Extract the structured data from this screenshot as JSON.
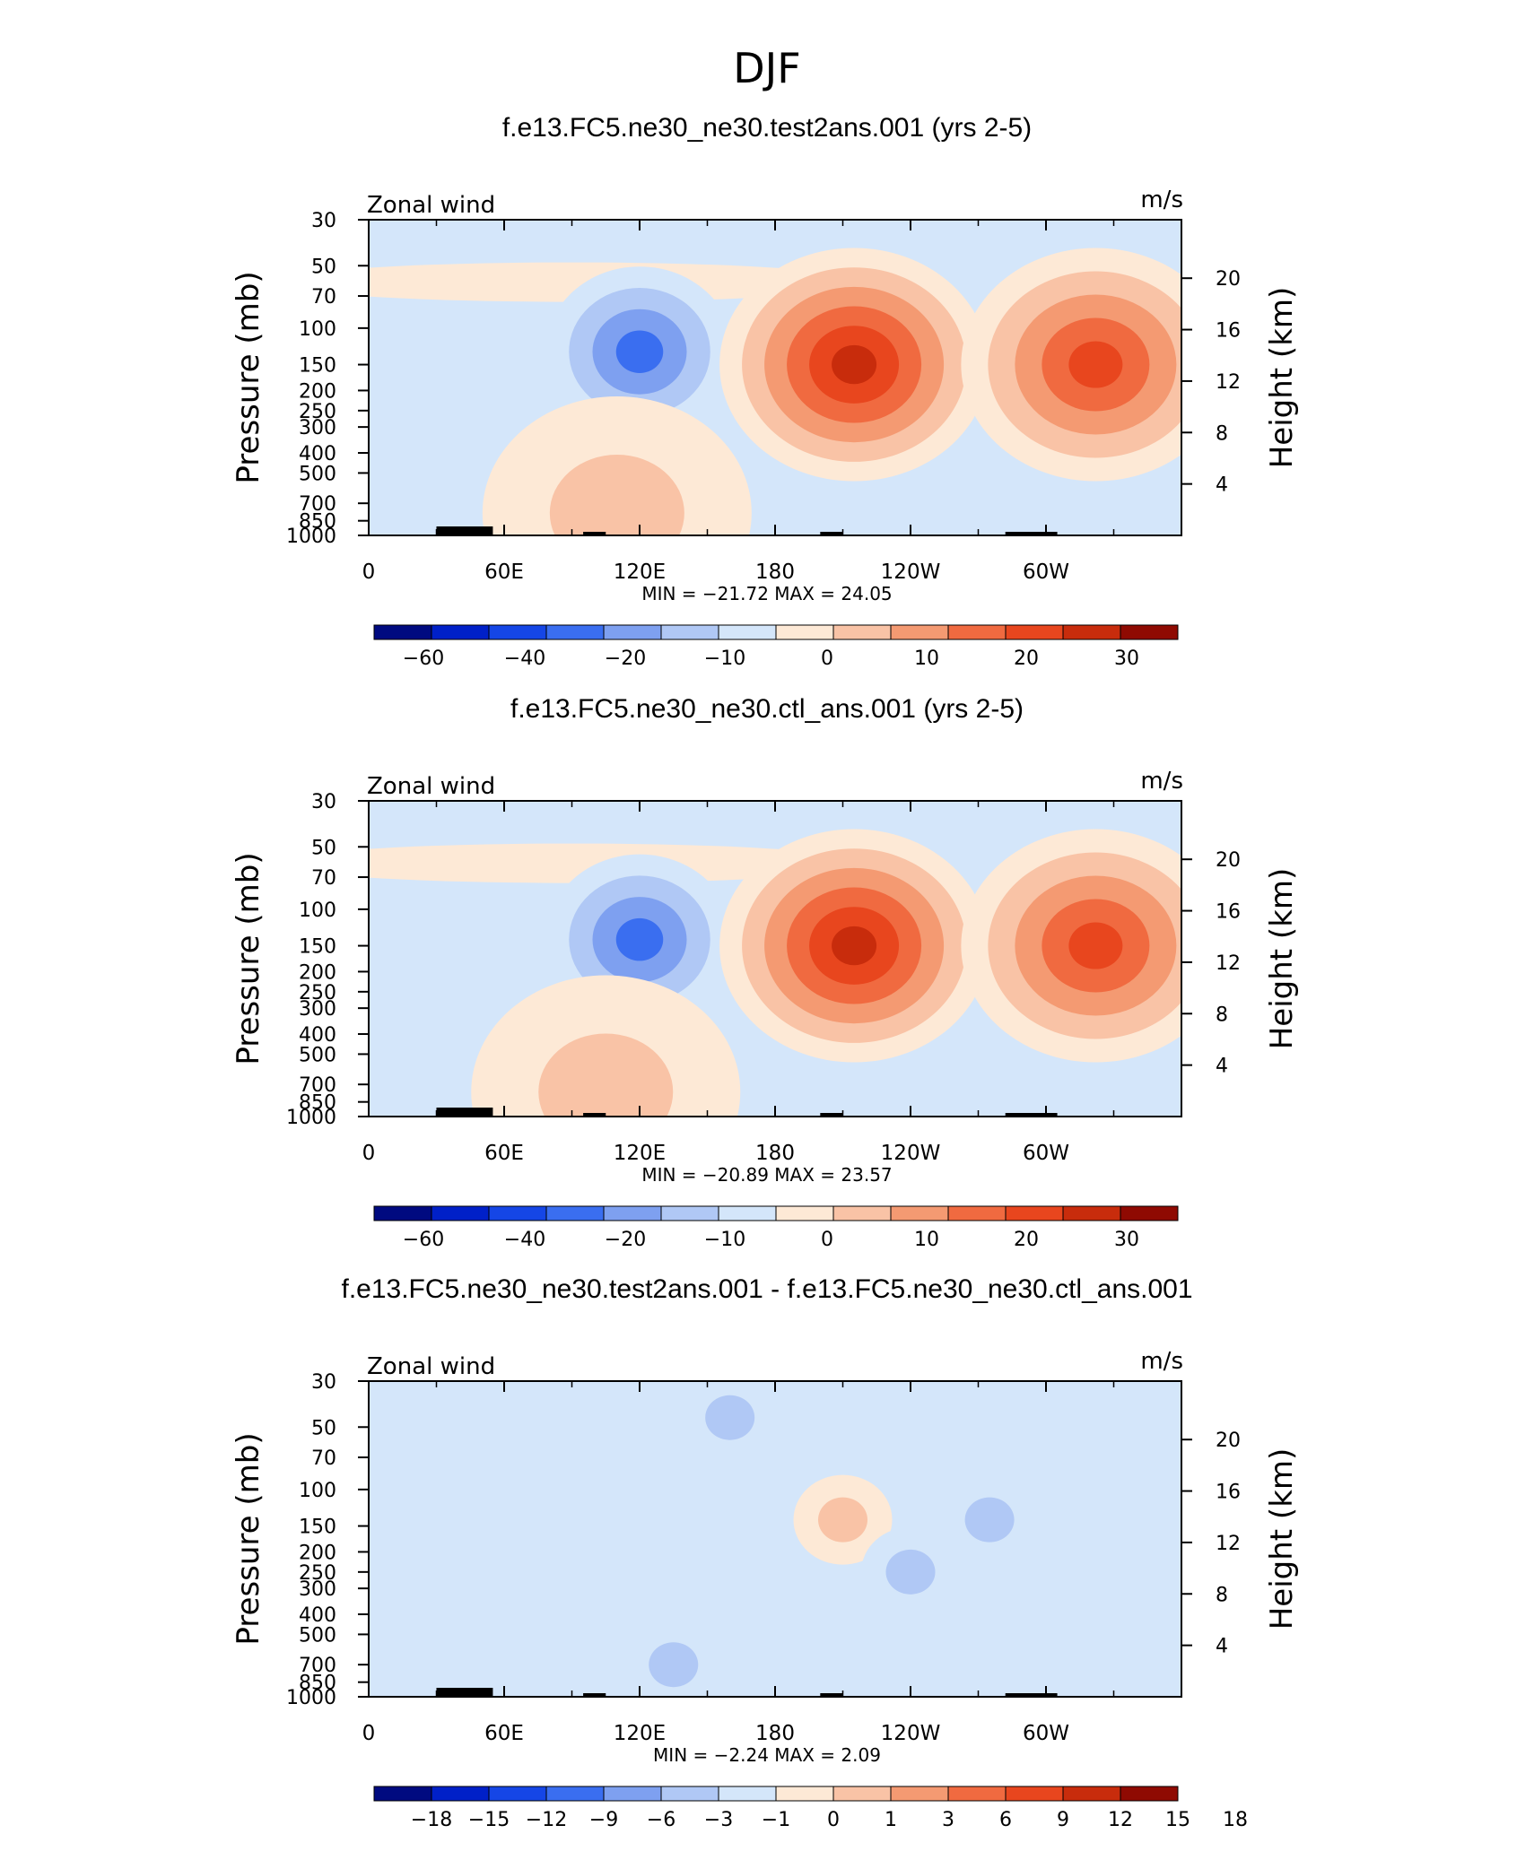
{
  "figure_title": "DJF",
  "chart_data": [
    {
      "type": "heatmap",
      "title": "f.e13.FC5.ne30_ne30.test2ans.001 (yrs 2-5)",
      "left_label": "Zonal wind",
      "right_label": "m/s",
      "ylabel": "Pressure (mb)",
      "ylabel_right": "Height (km)",
      "x_ticks": [
        "0",
        "60E",
        "120E",
        "180",
        "120W",
        "60W"
      ],
      "y_ticks": [
        "30",
        "50",
        "70",
        "100",
        "150",
        "200",
        "250",
        "300",
        "400",
        "500",
        "700",
        "850",
        "1000"
      ],
      "y_ticks_right": [
        "20",
        "16",
        "12",
        "8",
        "4"
      ],
      "stats_text": "MIN = −21.72   MAX =   24.05",
      "min": -21.72,
      "max": 24.05,
      "colorbar_labels": [
        "−60",
        "−40",
        "−20",
        "−10",
        "0",
        "10",
        "20",
        "30"
      ],
      "features": [
        {
          "lon": 120,
          "plev": 130,
          "value": -18
        },
        {
          "lon": 215,
          "plev": 150,
          "value": 24
        },
        {
          "lon": 322,
          "plev": 150,
          "value": 22
        },
        {
          "lon": 110,
          "plev": 780,
          "value": 8
        }
      ]
    },
    {
      "type": "heatmap",
      "title": "f.e13.FC5.ne30_ne30.ctl_ans.001 (yrs 2-5)",
      "left_label": "Zonal wind",
      "right_label": "m/s",
      "ylabel": "Pressure (mb)",
      "ylabel_right": "Height (km)",
      "x_ticks": [
        "0",
        "60E",
        "120E",
        "180",
        "120W",
        "60W"
      ],
      "y_ticks": [
        "30",
        "50",
        "70",
        "100",
        "150",
        "200",
        "250",
        "300",
        "400",
        "500",
        "700",
        "850",
        "1000"
      ],
      "y_ticks_right": [
        "20",
        "16",
        "12",
        "8",
        "4"
      ],
      "stats_text": "MIN = −20.89   MAX =   23.57",
      "min": -20.89,
      "max": 23.57,
      "colorbar_labels": [
        "−60",
        "−40",
        "−20",
        "−10",
        "0",
        "10",
        "20",
        "30"
      ],
      "features": [
        {
          "lon": 120,
          "plev": 140,
          "value": -17
        },
        {
          "lon": 215,
          "plev": 150,
          "value": 23
        },
        {
          "lon": 322,
          "plev": 150,
          "value": 21
        },
        {
          "lon": 105,
          "plev": 760,
          "value": 8
        }
      ]
    },
    {
      "type": "heatmap",
      "title": "f.e13.FC5.ne30_ne30.test2ans.001 - f.e13.FC5.ne30_ne30.ctl_ans.001",
      "left_label": "Zonal wind",
      "right_label": "m/s",
      "ylabel": "Pressure (mb)",
      "ylabel_right": "Height (km)",
      "x_ticks": [
        "0",
        "60E",
        "120E",
        "180",
        "120W",
        "60W"
      ],
      "y_ticks": [
        "30",
        "50",
        "70",
        "100",
        "150",
        "200",
        "250",
        "300",
        "400",
        "500",
        "700",
        "850",
        "1000"
      ],
      "y_ticks_right": [
        "20",
        "16",
        "12",
        "8",
        "4"
      ],
      "stats_text": "MIN =   −2.24   MAX =    2.09",
      "min": -2.24,
      "max": 2.09,
      "colorbar_labels": [
        "−18",
        "−15",
        "−12",
        "−9",
        "−6",
        "−3",
        "−1",
        "0",
        "1",
        "3",
        "6",
        "9",
        "12",
        "15",
        "18"
      ],
      "features": [
        {
          "lon": 210,
          "plev": 140,
          "value": 1.5
        },
        {
          "lon": 240,
          "plev": 250,
          "value": -1.5
        },
        {
          "lon": 275,
          "plev": 140,
          "value": -1.5
        },
        {
          "lon": 135,
          "plev": 700,
          "value": -1.5
        },
        {
          "lon": 160,
          "plev": 45,
          "value": -1.5
        }
      ]
    }
  ],
  "colors": {
    "colorbar": [
      "#000a80",
      "#0020c8",
      "#1546e6",
      "#3a6ef0",
      "#7ea0f0",
      "#b0c8f5",
      "#d4e6fa",
      "#fde9d6",
      "#f9c3a6",
      "#f49a72",
      "#f06a40",
      "#e8461e",
      "#c82c0c",
      "#8f0a02"
    ],
    "background_field": "#d4e6fa"
  }
}
